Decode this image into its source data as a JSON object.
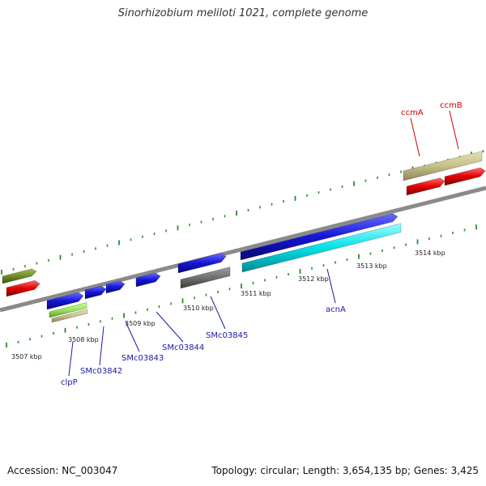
{
  "title": "Sinorhizobium meliloti 1021, complete genome",
  "footer": {
    "accession": "Accession: NC_003047",
    "summary": "Topology: circular; Length: 3,654,135 bp; Genes: 3,425"
  },
  "colors": {
    "backbone": "#8a8a8a",
    "tick": "#2e8b2e",
    "gene_label_blue": "#1a1aa6",
    "gene_label_red": "#cc0000",
    "feature_blue": "#1414d8",
    "feature_red": "#e00000",
    "feature_cyan": "#00e0e8",
    "feature_olive": "#6e8e2a",
    "feature_khaki": "#c8c08a",
    "feature_lime": "#99e65a",
    "feature_gray": "#707070"
  },
  "scale_labels": [
    "3507 kbp",
    "3508 kbp",
    "3509 kbp",
    "3510 kbp",
    "3511 kbp",
    "3512 kbp",
    "3513 kbp",
    "3514 kbp"
  ],
  "gene_labels": [
    {
      "name": "clpP",
      "color": "gene_label_blue"
    },
    {
      "name": "SMc03842",
      "color": "gene_label_blue"
    },
    {
      "name": "SMc03843",
      "color": "gene_label_blue"
    },
    {
      "name": "SMc03844",
      "color": "gene_label_blue"
    },
    {
      "name": "SMc03845",
      "color": "gene_label_blue"
    },
    {
      "name": "acnA",
      "color": "gene_label_blue"
    },
    {
      "name": "ccmA",
      "color": "gene_label_red"
    },
    {
      "name": "ccmB",
      "color": "gene_label_red"
    }
  ]
}
